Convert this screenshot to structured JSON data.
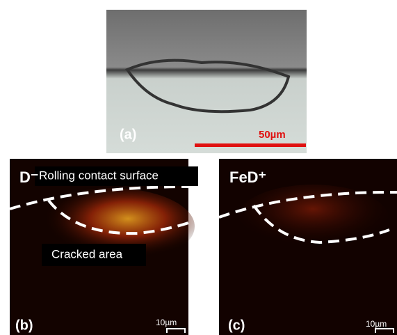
{
  "panels": [
    {
      "label": "(a)",
      "scale": "50µm"
    },
    {
      "label": "(b)",
      "species": "D⁻",
      "scale": "10µm",
      "annotations": [
        "Rolling contact surface",
        "Cracked area"
      ]
    },
    {
      "label": "(c)",
      "species": "FeD⁺",
      "scale": "10µm"
    }
  ]
}
